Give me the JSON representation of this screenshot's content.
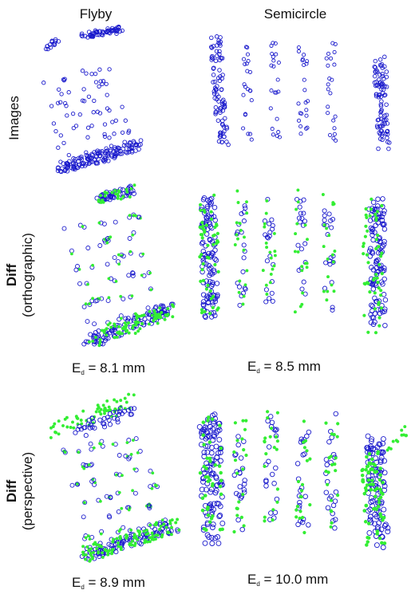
{
  "columns": {
    "left": "Flyby",
    "right": "Semicircle"
  },
  "rows": {
    "images": {
      "label": "Images"
    },
    "orthographic": {
      "bold": "Diff",
      "sub": "(orthographic)"
    },
    "perspective": {
      "bold": "Diff",
      "sub": "(perspective)"
    }
  },
  "errors": {
    "symbol": "E",
    "subscript": "d",
    "flyby_ortho": "= 8.1 mm",
    "semi_ortho": "= 8.5 mm",
    "flyby_persp": "= 8.9 mm",
    "semi_persp": "= 10.0 mm"
  },
  "colors": {
    "marker_blue": "#1a1acc",
    "marker_green": "#33ee33"
  },
  "marker_legend": [
    "blue-circle-marker",
    "green-dot-marker"
  ]
}
